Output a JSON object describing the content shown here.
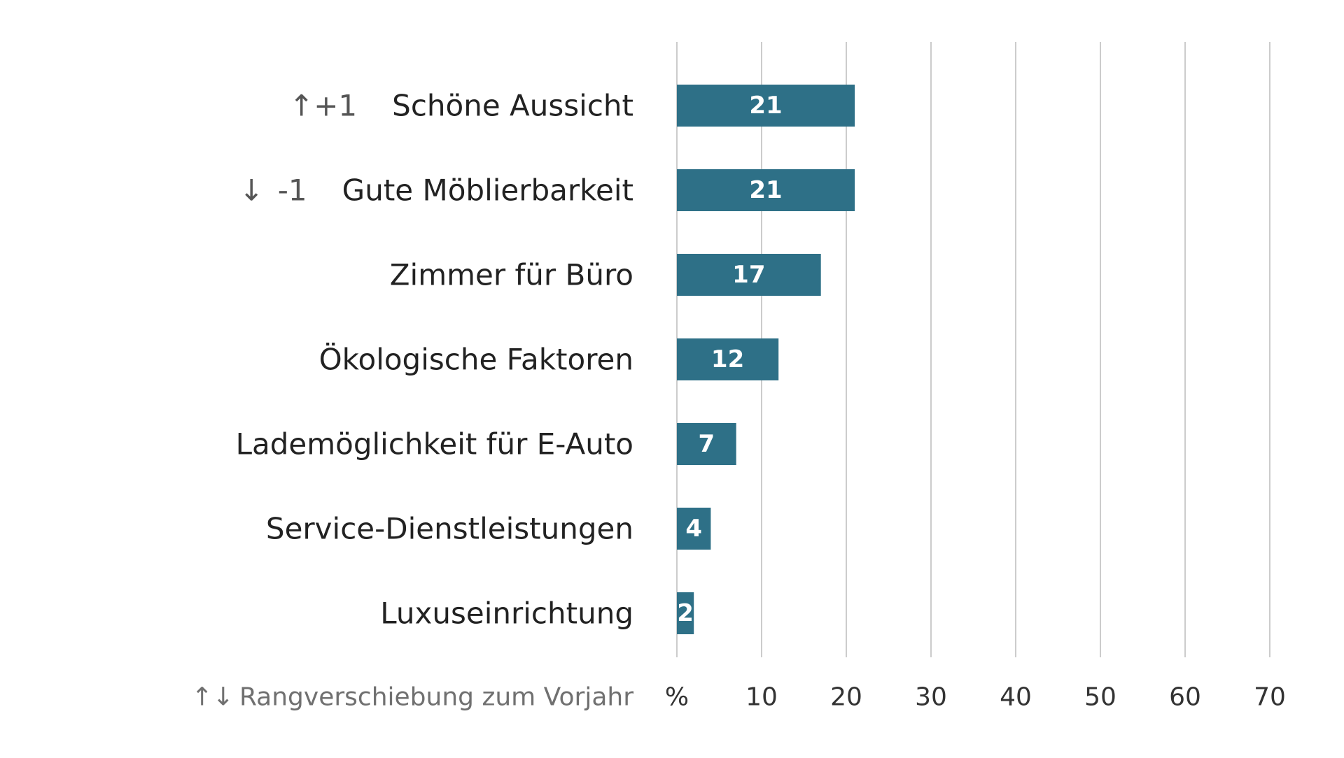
{
  "chart_data": {
    "type": "bar",
    "orientation": "horizontal",
    "categories": [
      "Schöne Aussicht",
      "Gute Möblierbarkeit",
      "Zimmer für Büro",
      "Ökologische Faktoren",
      "Lademöglichkeit für E-Auto",
      "Service-Dienstleistungen",
      "Luxuseinrichtung"
    ],
    "values": [
      21,
      21,
      17,
      12,
      7,
      4,
      2
    ],
    "value_labels": [
      "21",
      "21",
      "17",
      "12",
      "7",
      "4",
      "2"
    ],
    "rank_changes": [
      {
        "arrow": "↑",
        "text": "+1"
      },
      {
        "arrow": "↓",
        "text": "-1"
      },
      null,
      null,
      null,
      null,
      null
    ],
    "xlim": [
      0,
      70
    ],
    "x_ticks": [
      "%",
      "10",
      "20",
      "30",
      "40",
      "50",
      "60",
      "70"
    ],
    "x_tick_values": [
      0,
      10,
      20,
      30,
      40,
      50,
      60,
      70
    ],
    "legend_note": {
      "arrows": "↑↓",
      "text": "Rangverschiebung zum Vorjahr"
    },
    "grid": true,
    "grid_axis": "x"
  },
  "colors": {
    "bar": "#2e7087",
    "bar_label": "#ffffff",
    "category_text": "#222222",
    "rank_text": "#555555",
    "tick_text": "#333333",
    "legend_text": "#707070",
    "grid": "#cccccc"
  }
}
